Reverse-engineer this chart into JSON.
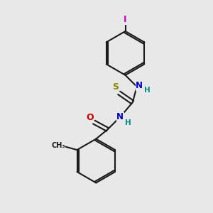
{
  "bg_color": "#e8e8e8",
  "bond_color": "#1a1a1a",
  "atom_colors": {
    "I": "#cc00cc",
    "N": "#0000cc",
    "O": "#cc0000",
    "S": "#888800",
    "C": "#1a1a1a",
    "H": "#008888"
  },
  "figsize": [
    3.0,
    3.0
  ],
  "dpi": 100
}
